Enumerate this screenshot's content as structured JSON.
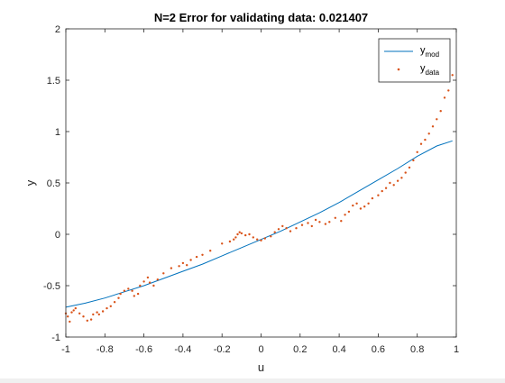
{
  "chart_data": {
    "type": "scatter",
    "title": "N=2 Error for validating data: 0.021407",
    "xlabel": "u",
    "ylabel": "y",
    "xlim": [
      -1,
      1
    ],
    "ylim": [
      -1,
      2
    ],
    "xticks": [
      "-1",
      "-0.8",
      "-0.6",
      "-0.4",
      "-0.2",
      "0",
      "0.2",
      "0.4",
      "0.6",
      "0.8",
      "1"
    ],
    "yticks": [
      "-1",
      "-0.5",
      "0",
      "0.5",
      "1",
      "1.5",
      "2"
    ],
    "legend": {
      "position": "top-right",
      "entries": [
        {
          "main": "y",
          "sub": "mod"
        },
        {
          "main": "y",
          "sub": "data"
        }
      ]
    },
    "colors": {
      "model": "#0072bd",
      "data": "#d95319",
      "axis": "#262626"
    },
    "series": [
      {
        "type": "line",
        "x": [
          -1.0,
          -0.9,
          -0.8,
          -0.7,
          -0.6,
          -0.5,
          -0.4,
          -0.3,
          -0.2,
          -0.1,
          0.0,
          0.1,
          0.2,
          0.3,
          0.4,
          0.5,
          0.6,
          0.7,
          0.8,
          0.9,
          0.98
        ],
        "y": [
          -0.71,
          -0.67,
          -0.62,
          -0.56,
          -0.5,
          -0.43,
          -0.36,
          -0.29,
          -0.21,
          -0.13,
          -0.05,
          0.03,
          0.12,
          0.21,
          0.31,
          0.42,
          0.53,
          0.64,
          0.76,
          0.86,
          0.91
        ]
      },
      {
        "type": "scatter",
        "x": [
          -1.0,
          -0.99,
          -0.98,
          -0.97,
          -0.96,
          -0.95,
          -0.93,
          -0.91,
          -0.89,
          -0.87,
          -0.86,
          -0.84,
          -0.83,
          -0.81,
          -0.79,
          -0.77,
          -0.75,
          -0.73,
          -0.72,
          -0.7,
          -0.68,
          -0.66,
          -0.65,
          -0.63,
          -0.62,
          -0.6,
          -0.58,
          -0.57,
          -0.55,
          -0.53,
          -0.5,
          -0.46,
          -0.42,
          -0.4,
          -0.38,
          -0.36,
          -0.33,
          -0.3,
          -0.26,
          -0.2,
          -0.16,
          -0.14,
          -0.13,
          -0.12,
          -0.11,
          -0.1,
          -0.08,
          -0.06,
          -0.04,
          -0.02,
          0.0,
          0.02,
          0.05,
          0.07,
          0.09,
          0.11,
          0.13,
          0.15,
          0.18,
          0.21,
          0.24,
          0.26,
          0.28,
          0.3,
          0.33,
          0.35,
          0.38,
          0.41,
          0.43,
          0.45,
          0.47,
          0.49,
          0.51,
          0.53,
          0.55,
          0.57,
          0.6,
          0.62,
          0.64,
          0.66,
          0.68,
          0.7,
          0.72,
          0.74,
          0.76,
          0.78,
          0.8,
          0.82,
          0.84,
          0.86,
          0.88,
          0.9,
          0.92,
          0.94,
          0.96,
          0.98
        ],
        "y": [
          -0.77,
          -0.8,
          -0.85,
          -0.76,
          -0.74,
          -0.72,
          -0.77,
          -0.8,
          -0.84,
          -0.83,
          -0.78,
          -0.76,
          -0.78,
          -0.75,
          -0.72,
          -0.7,
          -0.66,
          -0.62,
          -0.58,
          -0.55,
          -0.53,
          -0.55,
          -0.6,
          -0.58,
          -0.5,
          -0.46,
          -0.42,
          -0.47,
          -0.5,
          -0.44,
          -0.38,
          -0.33,
          -0.31,
          -0.28,
          -0.3,
          -0.25,
          -0.22,
          -0.2,
          -0.16,
          -0.09,
          -0.07,
          -0.05,
          -0.03,
          0.0,
          0.02,
          0.01,
          -0.01,
          0.0,
          -0.03,
          -0.05,
          -0.06,
          -0.04,
          -0.02,
          0.02,
          0.05,
          0.08,
          0.06,
          0.03,
          0.06,
          0.09,
          0.11,
          0.08,
          0.14,
          0.12,
          0.1,
          0.12,
          0.16,
          0.13,
          0.19,
          0.22,
          0.28,
          0.3,
          0.25,
          0.27,
          0.3,
          0.35,
          0.38,
          0.42,
          0.45,
          0.5,
          0.48,
          0.52,
          0.55,
          0.6,
          0.65,
          0.72,
          0.8,
          0.88,
          0.92,
          0.98,
          1.05,
          1.12,
          1.2,
          1.33,
          1.4,
          1.55
        ]
      }
    ]
  }
}
